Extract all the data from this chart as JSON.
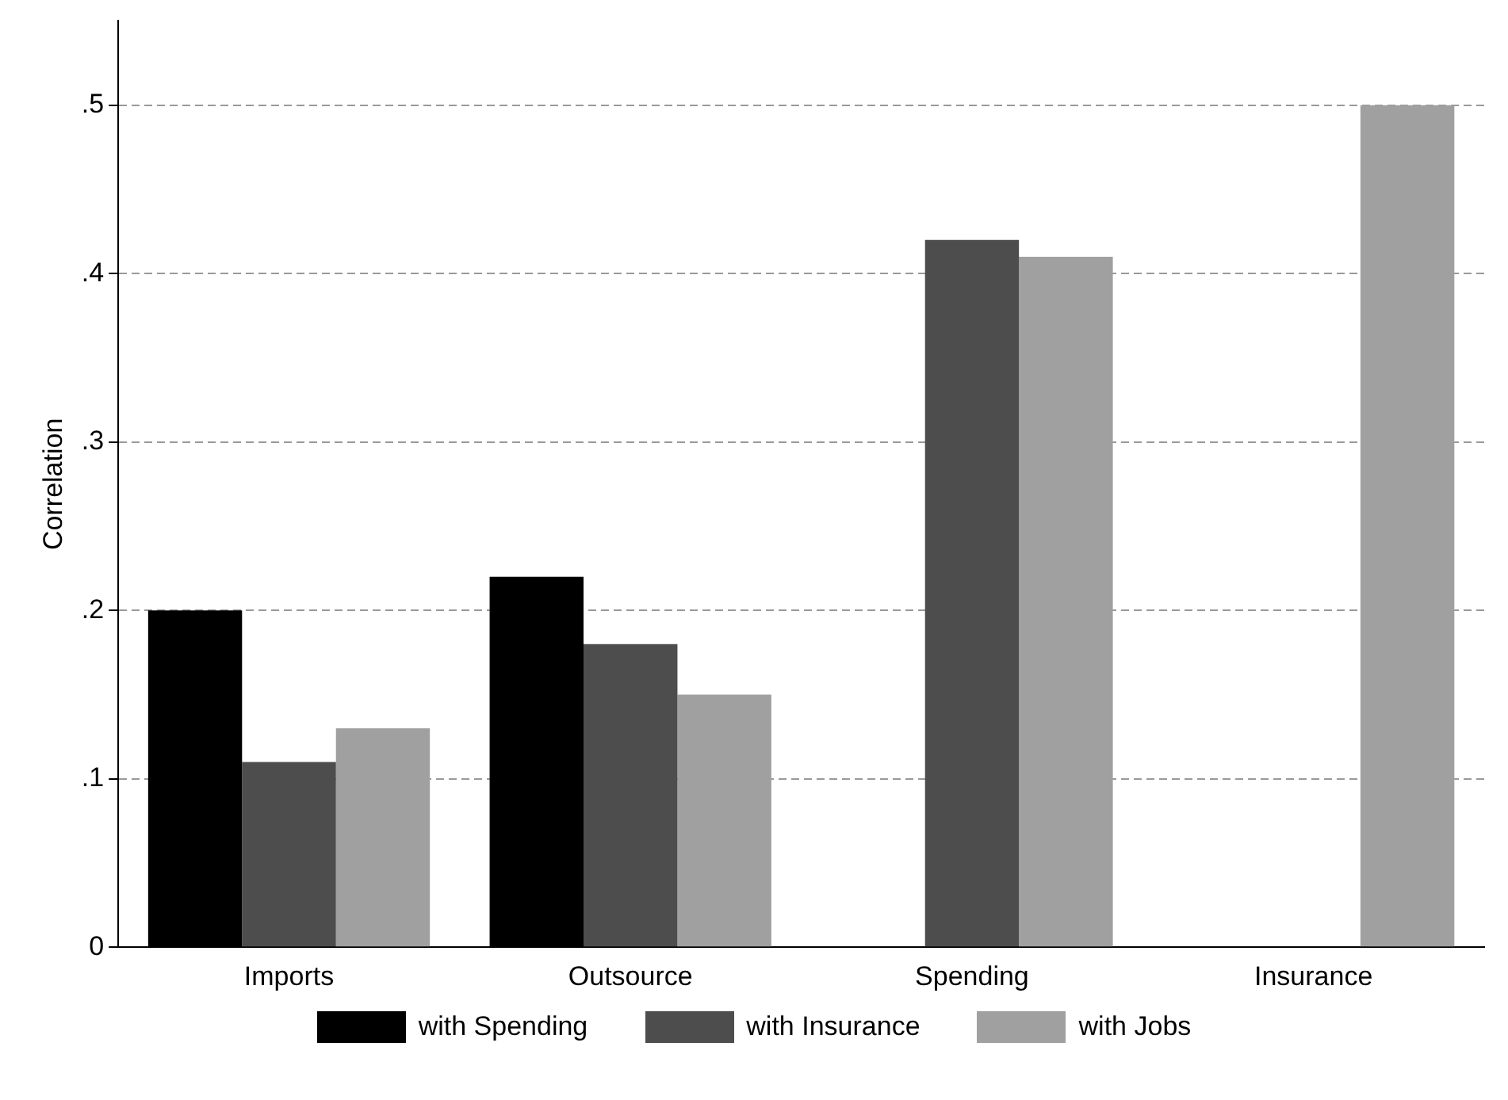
{
  "chart_data": {
    "type": "bar",
    "ylabel": "Correlation",
    "categories": [
      "Imports",
      "Outsource",
      "Spending",
      "Insurance"
    ],
    "series": [
      {
        "name": "with Spending",
        "color": "#000000",
        "values": [
          0.2,
          0.22,
          null,
          null
        ]
      },
      {
        "name": "with Insurance",
        "color": "#4d4d4d",
        "values": [
          0.11,
          0.18,
          0.42,
          null
        ]
      },
      {
        "name": "with Jobs",
        "color": "#a0a0a0",
        "values": [
          0.13,
          0.15,
          0.41,
          0.5
        ]
      }
    ],
    "ylim": [
      0,
      0.55
    ],
    "yticks": [
      0,
      {
        "value": 0.1,
        "label": ".1"
      },
      {
        "value": 0.2,
        "label": ".2"
      },
      {
        "value": 0.3,
        "label": ".3"
      },
      {
        "value": 0.4,
        "label": ".4"
      },
      {
        "value": 0.5,
        "label": ".5"
      }
    ],
    "grid": "y",
    "legend": "bottom"
  }
}
